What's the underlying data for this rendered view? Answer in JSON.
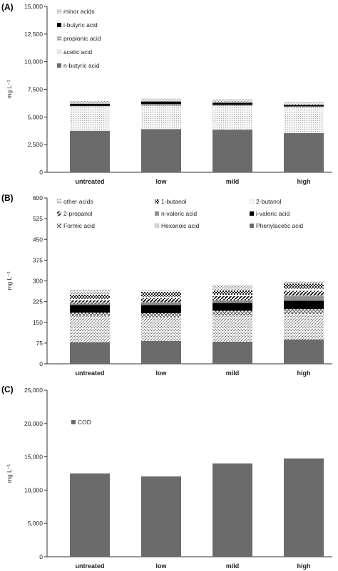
{
  "chart_data": [
    {
      "type": "bar",
      "stacked": true,
      "panel_label": "(A)",
      "ylabel": "mg L⁻¹",
      "ylim": [
        0,
        15000
      ],
      "yticks": [
        0,
        2500,
        5000,
        7500,
        10000,
        12500,
        15000
      ],
      "ytick_labels": [
        "0",
        "2,500",
        "5,000",
        "7,500",
        "10,000",
        "12,500",
        "15,000"
      ],
      "categories": [
        "untreated",
        "low",
        "mild",
        "high"
      ],
      "legend_position": "top-left",
      "series": [
        {
          "name": "n-butyric acid",
          "values": [
            3750,
            3900,
            3850,
            3550
          ],
          "color": "#6b6b6b",
          "pattern": "solid"
        },
        {
          "name": "acetic acid",
          "values": [
            2150,
            2100,
            2150,
            2300
          ],
          "color": "#e6e6e6",
          "pattern": "fine-dots"
        },
        {
          "name": "propionic acid",
          "values": [
            100,
            150,
            100,
            100
          ],
          "color": "#cccccc",
          "pattern": "dots"
        },
        {
          "name": "i-butyric acid",
          "values": [
            200,
            250,
            200,
            150
          ],
          "color": "#000000",
          "pattern": "solid"
        },
        {
          "name": "minor acids",
          "values": [
            250,
            250,
            300,
            250
          ],
          "color": "#d9d9d9",
          "pattern": "speckle"
        }
      ],
      "legend_order": [
        "minor acids",
        "i-butyric acid",
        "propionic acid",
        "acetic acid",
        "n-butyric acid"
      ]
    },
    {
      "type": "bar",
      "stacked": true,
      "panel_label": "(B)",
      "ylabel": "mg L⁻¹",
      "ylim": [
        0,
        600
      ],
      "yticks": [
        0,
        75,
        150,
        225,
        300,
        375,
        450,
        525,
        600
      ],
      "ytick_labels": [
        "0",
        "75",
        "150",
        "225",
        "300",
        "375",
        "450",
        "525",
        "600"
      ],
      "categories": [
        "untreated",
        "low",
        "mild",
        "high"
      ],
      "legend_position": "top",
      "series": [
        {
          "name": "Phenylacetic acid",
          "values": [
            78,
            83,
            80,
            88
          ],
          "color": "#6b6b6b",
          "pattern": "solid"
        },
        {
          "name": "Hexanoic acid",
          "values": [
            95,
            85,
            95,
            92
          ],
          "color": "#dddddd",
          "pattern": "speckle"
        },
        {
          "name": "Formic acid",
          "values": [
            12,
            15,
            17,
            18
          ],
          "color": "#bbbbbb",
          "pattern": "cross"
        },
        {
          "name": "i-valeric acid",
          "values": [
            28,
            30,
            28,
            30
          ],
          "color": "#000000",
          "pattern": "solid"
        },
        {
          "name": "n-valeric acid",
          "values": [
            5,
            10,
            10,
            18
          ],
          "color": "#8a8a8a",
          "pattern": "grid"
        },
        {
          "name": "2-propanol",
          "values": [
            12,
            15,
            15,
            18
          ],
          "color": "#111111",
          "pattern": "diagonal"
        },
        {
          "name": "2-butanol",
          "values": [
            5,
            5,
            5,
            8
          ],
          "color": "#f0f0f0",
          "pattern": "light-dots"
        },
        {
          "name": "1-butanol",
          "values": [
            15,
            17,
            15,
            18
          ],
          "color": "#333333",
          "pattern": "checker"
        },
        {
          "name": "other acids",
          "values": [
            18,
            5,
            20,
            8
          ],
          "color": "#d0d0d0",
          "pattern": "speckle"
        }
      ],
      "legend_order": [
        "other acids",
        "1-butanol",
        "2-butanol",
        "2-propanol",
        "n-valeric acid",
        "i-valeric acid",
        "Formic acid",
        "Hexanoic acid",
        "Phenylacetic acid"
      ]
    },
    {
      "type": "bar",
      "stacked": false,
      "panel_label": "(C)",
      "ylabel": "mg L⁻¹",
      "ylim": [
        0,
        25000
      ],
      "yticks": [
        0,
        5000,
        10000,
        15000,
        20000,
        25000
      ],
      "ytick_labels": [
        "0",
        "5,000",
        "10,000",
        "15,000",
        "20,000",
        "25,000"
      ],
      "categories": [
        "untreated",
        "low",
        "mild",
        "high"
      ],
      "legend_position": "top-left",
      "series": [
        {
          "name": "COD",
          "values": [
            12500,
            12050,
            14000,
            14750
          ],
          "color": "#6b6b6b",
          "pattern": "solid"
        }
      ],
      "legend_order": [
        "COD"
      ]
    }
  ]
}
